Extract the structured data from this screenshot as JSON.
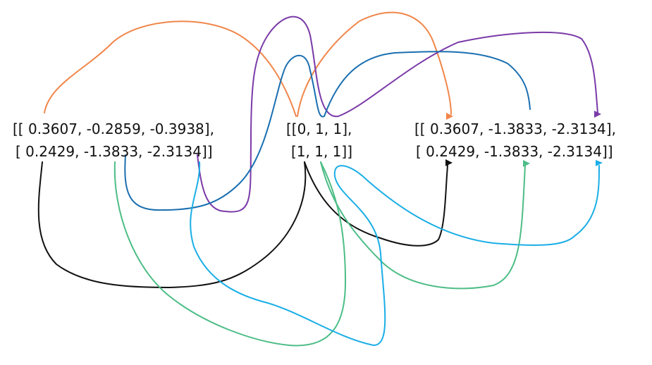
{
  "left": {
    "rows": [
      "[[ 0.3607, -0.2859, -0.3938],",
      "[ 0.2429, -1.3833, -2.3134]]"
    ]
  },
  "middle": {
    "rows": [
      "[[0, 1, 1],",
      "[1, 1, 1]]"
    ]
  },
  "right": {
    "rows": [
      "[[ 0.3607, -1.3833, -2.3134],",
      "[ 0.2429, -1.3833, -2.3134]]"
    ]
  }
}
